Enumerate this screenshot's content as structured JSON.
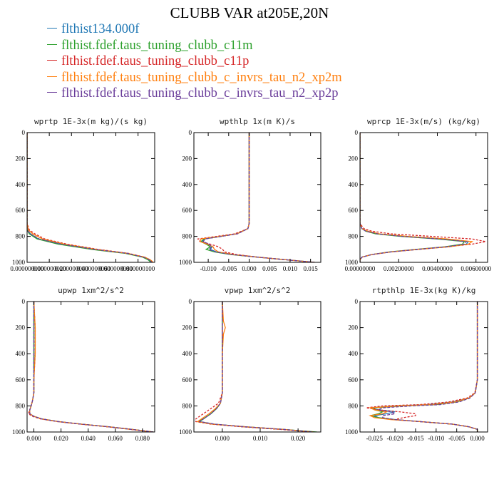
{
  "title": "CLUBB VAR at205E,20N",
  "legend": [
    {
      "label": "flthist134.000f",
      "color": "#1f77b4"
    },
    {
      "label": "flthist.fdef.taus_tuning_clubb_c11m",
      "color": "#2ca02c"
    },
    {
      "label": "flthist.fdef.taus_tuning_clubb_c11p",
      "color": "#d62728"
    },
    {
      "label": "flthist.fdef.taus_tuning_clubb_c_invrs_tau_n2_xp2m",
      "color": "#ff7f0e"
    },
    {
      "label": "flthist.fdef.taus_tuning_clubb_c_invrs_tau_n2_xp2p",
      "color": "#6a3d9a"
    }
  ],
  "chart_data": [
    {
      "type": "line",
      "title": "wprtp  1E-3x(m kg)/(s kg)",
      "xlim": [
        0,
        1.15e-07
      ],
      "xticks": [
        0,
        2e-08,
        4e-08,
        6e-08,
        8e-08,
        1e-07
      ],
      "xtick_labels": [
        "0.000000000",
        "0.000000020",
        "0.000000040",
        "0.000000060",
        "0.000000080",
        "0.000000100"
      ],
      "ylim": [
        0,
        1000
      ],
      "yticks": [
        0,
        200,
        400,
        600,
        800,
        1000
      ],
      "y": [
        0,
        200,
        400,
        600,
        700,
        750,
        780,
        820,
        860,
        900,
        930,
        960,
        980,
        995,
        1000
      ],
      "series": [
        {
          "name": "flthist134.000f",
          "values": [
            0,
            0,
            0,
            0,
            0,
            0,
            3e-09,
            1e-08,
            3e-08,
            6e-08,
            9e-08,
            1.05e-07,
            1.1e-07,
            1.12e-07,
            1.12e-07
          ]
        },
        {
          "name": "flthist.fdef.taus_tuning_clubb_c11m",
          "values": [
            0,
            0,
            0,
            0,
            0,
            0,
            2e-09,
            9e-09,
            2.8e-08,
            5.8e-08,
            8.8e-08,
            1.04e-07,
            1.09e-07,
            1.11e-07,
            1.11e-07
          ]
        },
        {
          "name": "flthist.fdef.taus_tuning_clubb_c11p",
          "values": [
            0,
            0,
            0,
            0,
            0,
            2e-09,
            7e-09,
            1.6e-08,
            3.6e-08,
            6.4e-08,
            9.1e-08,
            1.06e-07,
            1.11e-07,
            1.13e-07,
            1.13e-07
          ]
        },
        {
          "name": "flthist.fdef.taus_tuning_clubb_c_invrs_tau_n2_xp2m",
          "values": [
            0,
            0,
            0,
            0,
            0,
            1e-09,
            5e-09,
            1.4e-08,
            3.4e-08,
            6.2e-08,
            9e-08,
            1.06e-07,
            1.11e-07,
            1.13e-07,
            1.13e-07
          ]
        },
        {
          "name": "flthist.fdef.taus_tuning_clubb_c_invrs_tau_n2_xp2p",
          "values": [
            0,
            0,
            0,
            0,
            0,
            0,
            3e-09,
            1.1e-08,
            3.1e-08,
            6.1e-08,
            9e-08,
            1.05e-07,
            1.1e-07,
            1.12e-07,
            1.12e-07
          ]
        }
      ]
    },
    {
      "type": "line",
      "title": "wpthlp  1x(m K)/s",
      "xlim": [
        -0.0135,
        0.0175
      ],
      "xticks": [
        -0.01,
        -0.005,
        0,
        0.005,
        0.01,
        0.015
      ],
      "xtick_labels": [
        "-0.010",
        "-0.005",
        "0.000",
        "0.005",
        "0.010",
        "0.015"
      ],
      "ylim": [
        0,
        1000
      ],
      "yticks": [
        0,
        200,
        400,
        600,
        800,
        1000
      ],
      "y": [
        0,
        200,
        400,
        600,
        700,
        740,
        780,
        800,
        820,
        840,
        860,
        880,
        900,
        920,
        940,
        960,
        980,
        1000
      ],
      "series": [
        {
          "name": "flthist134.000f",
          "values": [
            0,
            0,
            0,
            0,
            0,
            -0.0003,
            -0.003,
            -0.007,
            -0.011,
            -0.0115,
            -0.01,
            -0.009,
            -0.0095,
            -0.008,
            -0.004,
            0.002,
            0.009,
            0.016
          ]
        },
        {
          "name": "flthist.fdef.taus_tuning_clubb_c11m",
          "values": [
            0,
            0,
            0,
            0,
            0,
            -0.0003,
            -0.003,
            -0.007,
            -0.011,
            -0.0118,
            -0.0105,
            -0.0095,
            -0.0105,
            -0.0085,
            -0.0045,
            0.002,
            0.009,
            0.016
          ]
        },
        {
          "name": "flthist.fdef.taus_tuning_clubb_c11p",
          "values": [
            0,
            0,
            0,
            0,
            0,
            -0.0003,
            -0.0035,
            -0.008,
            -0.0125,
            -0.012,
            -0.0095,
            -0.0075,
            -0.0065,
            -0.006,
            -0.003,
            0.002,
            0.009,
            0.016
          ]
        },
        {
          "name": "flthist.fdef.taus_tuning_clubb_c_invrs_tau_n2_xp2m",
          "values": [
            0,
            0,
            0,
            0,
            0,
            -0.0003,
            -0.003,
            -0.0072,
            -0.0118,
            -0.012,
            -0.0102,
            -0.0088,
            -0.0085,
            -0.0075,
            -0.0038,
            0.002,
            0.009,
            0.016
          ]
        },
        {
          "name": "flthist.fdef.taus_tuning_clubb_c_invrs_tau_n2_xp2p",
          "values": [
            0,
            0,
            0,
            0,
            0,
            -0.0003,
            -0.0028,
            -0.0068,
            -0.0108,
            -0.0112,
            -0.0098,
            -0.0092,
            -0.0098,
            -0.0082,
            -0.0042,
            0.002,
            0.009,
            0.016
          ]
        }
      ]
    },
    {
      "type": "line",
      "title": "wprcp  1E-3x(m/s) (kg/kg)",
      "xlim": [
        0,
        0.0066
      ],
      "xticks": [
        0,
        0.002,
        0.004,
        0.006
      ],
      "xtick_labels": [
        "0.00000000",
        "0.00200000",
        "0.00400000",
        "0.00600000"
      ],
      "ylim": [
        0,
        1000
      ],
      "yticks": [
        0,
        200,
        400,
        600,
        800,
        1000
      ],
      "y": [
        0,
        200,
        400,
        600,
        700,
        740,
        760,
        780,
        800,
        820,
        840,
        860,
        880,
        900,
        920,
        940,
        960,
        980,
        1000
      ],
      "series": [
        {
          "name": "flthist134.000f",
          "values": [
            0,
            0,
            0,
            0,
            0,
            0.0001,
            0.0003,
            0.0009,
            0.0023,
            0.0042,
            0.0056,
            0.0055,
            0.0045,
            0.003,
            0.0016,
            0.0006,
            0.0001,
            0,
            0
          ]
        },
        {
          "name": "flthist.fdef.taus_tuning_clubb_c11m",
          "values": [
            0,
            0,
            0,
            0,
            0,
            0.0001,
            0.0003,
            0.0008,
            0.0021,
            0.004,
            0.0054,
            0.0053,
            0.0044,
            0.0029,
            0.0015,
            0.0006,
            0.0001,
            0,
            0
          ]
        },
        {
          "name": "flthist.fdef.taus_tuning_clubb_c11p",
          "values": [
            0,
            0,
            0,
            0,
            0,
            0.0002,
            0.0006,
            0.0016,
            0.0037,
            0.0058,
            0.0065,
            0.0058,
            0.0045,
            0.003,
            0.0016,
            0.0006,
            0.0001,
            0,
            0
          ]
        },
        {
          "name": "flthist.fdef.taus_tuning_clubb_c_invrs_tau_n2_xp2m",
          "values": [
            0,
            0,
            0,
            0,
            0,
            0.0001,
            0.0004,
            0.001,
            0.0025,
            0.0045,
            0.0058,
            0.0056,
            0.0046,
            0.003,
            0.0016,
            0.0006,
            0.0001,
            0,
            0
          ]
        },
        {
          "name": "flthist.fdef.taus_tuning_clubb_c_invrs_tau_n2_xp2p",
          "values": [
            0,
            0,
            0,
            0,
            0,
            0.0001,
            0.0003,
            0.0009,
            0.0022,
            0.0041,
            0.0055,
            0.0054,
            0.0045,
            0.003,
            0.0016,
            0.0006,
            0.0001,
            0,
            0
          ]
        }
      ]
    },
    {
      "type": "line",
      "title": "upwp  1xm^2/s^2",
      "xlim": [
        -0.005,
        0.089
      ],
      "xticks": [
        0,
        0.02,
        0.04,
        0.06,
        0.08
      ],
      "xtick_labels": [
        "0.000",
        "0.020",
        "0.040",
        "0.060",
        "0.080"
      ],
      "ylim": [
        0,
        1000
      ],
      "yticks": [
        0,
        200,
        400,
        600,
        800,
        1000
      ],
      "y": [
        0,
        200,
        400,
        600,
        700,
        760,
        800,
        830,
        860,
        880,
        900,
        920,
        940,
        960,
        980,
        1000
      ],
      "series": [
        {
          "name": "flthist134.000f",
          "values": [
            0,
            0,
            0,
            0,
            0,
            -0.001,
            -0.002,
            -0.003,
            -0.003,
            0,
            0.006,
            0.018,
            0.035,
            0.055,
            0.072,
            0.088
          ]
        },
        {
          "name": "flthist.fdef.taus_tuning_clubb_c11m",
          "values": [
            0,
            0,
            0,
            0,
            0,
            -0.001,
            -0.002,
            -0.003,
            -0.003,
            0,
            0.006,
            0.018,
            0.035,
            0.055,
            0.072,
            0.088
          ]
        },
        {
          "name": "flthist.fdef.taus_tuning_clubb_c11p",
          "values": [
            0,
            0.001,
            0.001,
            0,
            0,
            -0.001,
            -0.002,
            -0.003,
            -0.004,
            -0.001,
            0.005,
            0.017,
            0.034,
            0.054,
            0.071,
            0.087
          ]
        },
        {
          "name": "flthist.fdef.taus_tuning_clubb_c_invrs_tau_n2_xp2m",
          "values": [
            0,
            0.001,
            0.001,
            0,
            0,
            -0.001,
            -0.002,
            -0.003,
            -0.003,
            0,
            0.006,
            0.018,
            0.035,
            0.055,
            0.072,
            0.088
          ]
        },
        {
          "name": "flthist.fdef.taus_tuning_clubb_c_invrs_tau_n2_xp2p",
          "values": [
            0,
            0,
            0,
            0,
            0,
            -0.001,
            -0.002,
            -0.003,
            -0.003,
            0,
            0.006,
            0.018,
            0.035,
            0.055,
            0.072,
            0.088
          ]
        }
      ]
    },
    {
      "type": "line",
      "title": "vpwp  1xm^2/s^2",
      "xlim": [
        -0.0075,
        0.026
      ],
      "xticks": [
        0,
        0.01,
        0.02
      ],
      "xtick_labels": [
        "0.000",
        "0.010",
        "0.020"
      ],
      "ylim": [
        0,
        1000
      ],
      "yticks": [
        0,
        200,
        400,
        600,
        800,
        1000
      ],
      "y": [
        0,
        150,
        200,
        250,
        400,
        600,
        700,
        780,
        820,
        860,
        880,
        900,
        920,
        940,
        960,
        980,
        1000
      ],
      "series": [
        {
          "name": "flthist134.000f",
          "values": [
            0,
            0,
            0,
            0,
            0,
            0,
            0,
            -0.0005,
            -0.0015,
            -0.003,
            -0.004,
            -0.005,
            -0.006,
            -0.002,
            0.006,
            0.016,
            0.024
          ]
        },
        {
          "name": "flthist.fdef.taus_tuning_clubb_c11m",
          "values": [
            0,
            0,
            0,
            0,
            0,
            0,
            0,
            -0.0005,
            -0.0015,
            -0.003,
            -0.004,
            -0.005,
            -0.0065,
            -0.0025,
            0.006,
            0.016,
            0.025
          ]
        },
        {
          "name": "flthist.fdef.taus_tuning_clubb_c11p",
          "values": [
            0,
            0,
            0,
            0,
            0,
            0,
            0,
            -0.001,
            -0.003,
            -0.005,
            -0.006,
            -0.007,
            -0.007,
            -0.003,
            0.005,
            0.015,
            0.024
          ]
        },
        {
          "name": "flthist.fdef.taus_tuning_clubb_c_invrs_tau_n2_xp2m",
          "values": [
            0,
            0.0003,
            0.0008,
            0.0003,
            0,
            0,
            0,
            -0.0005,
            -0.0018,
            -0.0035,
            -0.0045,
            -0.0055,
            -0.0065,
            -0.0025,
            0.006,
            0.016,
            0.024
          ]
        },
        {
          "name": "flthist.fdef.taus_tuning_clubb_c_invrs_tau_n2_xp2p",
          "values": [
            0,
            0,
            0,
            0,
            0,
            0,
            0,
            -0.0005,
            -0.0015,
            -0.003,
            -0.004,
            -0.005,
            -0.006,
            -0.002,
            0.006,
            0.016,
            0.024
          ]
        }
      ]
    },
    {
      "type": "line",
      "title": "rtpthlp  1E-3x(kg K)/kg",
      "xlim": [
        -0.0285,
        0.0025
      ],
      "xticks": [
        -0.025,
        -0.02,
        -0.015,
        -0.01,
        -0.005,
        0
      ],
      "xtick_labels": [
        "-0.025",
        "-0.020",
        "-0.015",
        "-0.010",
        "-0.005",
        "0.000"
      ],
      "ylim": [
        0,
        1000
      ],
      "yticks": [
        0,
        200,
        400,
        600,
        800,
        1000
      ],
      "y": [
        0,
        200,
        400,
        600,
        700,
        740,
        770,
        790,
        800,
        815,
        830,
        845,
        860,
        875,
        890,
        905,
        920,
        940,
        960,
        980,
        1000
      ],
      "series": [
        {
          "name": "flthist134.000f",
          "values": [
            0,
            0,
            0,
            0,
            -0.0005,
            -0.002,
            -0.006,
            -0.012,
            -0.02,
            -0.026,
            -0.024,
            -0.02,
            -0.022,
            -0.025,
            -0.024,
            -0.02,
            -0.014,
            -0.006,
            -0.002,
            0,
            0
          ]
        },
        {
          "name": "flthist.fdef.taus_tuning_clubb_c11m",
          "values": [
            0,
            0,
            0,
            0,
            -0.0005,
            -0.002,
            -0.005,
            -0.01,
            -0.018,
            -0.025,
            -0.025,
            -0.023,
            -0.024,
            -0.026,
            -0.024,
            -0.02,
            -0.014,
            -0.006,
            -0.002,
            0,
            0
          ]
        },
        {
          "name": "flthist.fdef.taus_tuning_clubb_c11p",
          "values": [
            0,
            0,
            0,
            0,
            -0.0006,
            -0.0025,
            -0.007,
            -0.014,
            -0.023,
            -0.027,
            -0.024,
            -0.019,
            -0.015,
            -0.015,
            -0.018,
            -0.02,
            -0.014,
            -0.006,
            -0.002,
            0,
            0
          ]
        },
        {
          "name": "flthist.fdef.taus_tuning_clubb_c_invrs_tau_n2_xp2m",
          "values": [
            0,
            0,
            0,
            0,
            -0.0005,
            -0.002,
            -0.0055,
            -0.011,
            -0.019,
            -0.026,
            -0.025,
            -0.022,
            -0.023,
            -0.026,
            -0.025,
            -0.021,
            -0.014,
            -0.006,
            -0.002,
            0,
            0
          ]
        },
        {
          "name": "flthist.fdef.taus_tuning_clubb_c_invrs_tau_n2_xp2p",
          "values": [
            0,
            0,
            0,
            0,
            -0.0005,
            -0.0018,
            -0.0045,
            -0.009,
            -0.016,
            -0.023,
            -0.024,
            -0.021,
            -0.02,
            -0.023,
            -0.023,
            -0.02,
            -0.014,
            -0.006,
            -0.002,
            0,
            0
          ]
        }
      ]
    }
  ]
}
